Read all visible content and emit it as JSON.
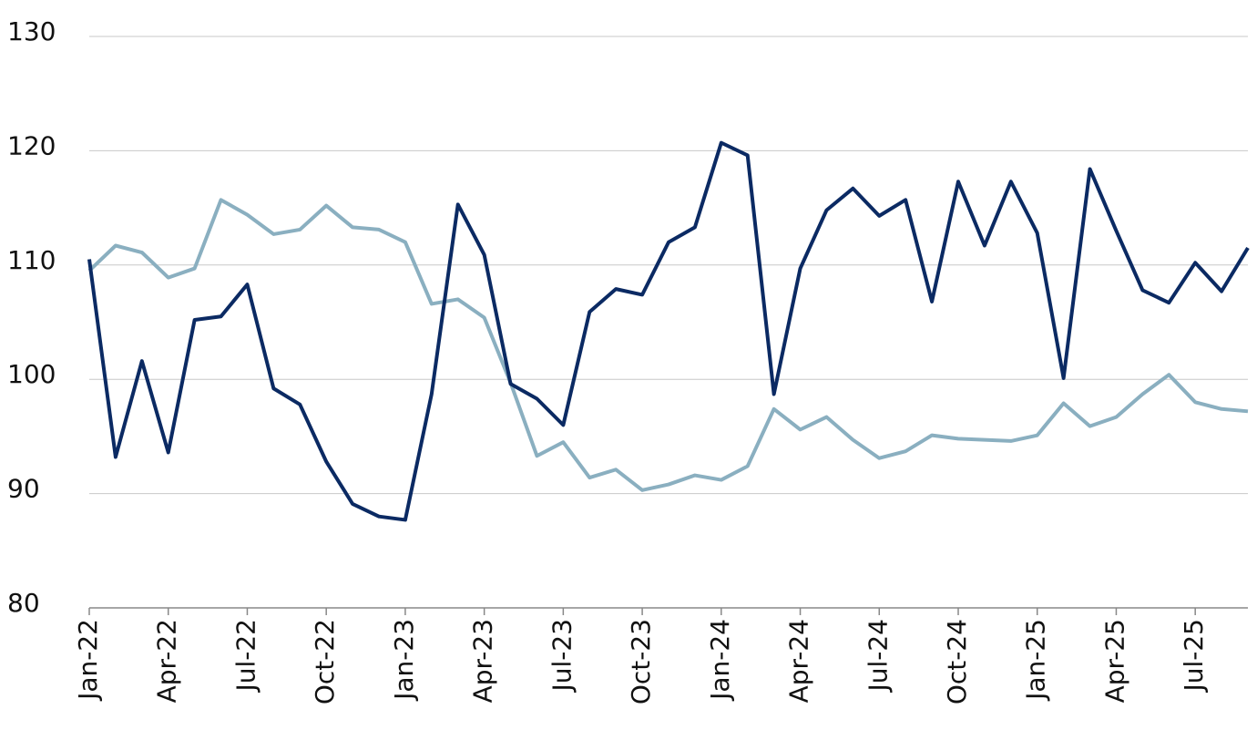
{
  "chart_data": {
    "type": "line",
    "categories": [
      "Jan-22",
      null,
      null,
      "Apr-22",
      null,
      null,
      "Jul-22",
      null,
      null,
      "Oct-22",
      null,
      null,
      "Jan-23",
      null,
      null,
      "Apr-23",
      null,
      null,
      "Jul-23",
      null,
      null,
      "Oct-23",
      null,
      null,
      "Jan-24",
      null,
      null,
      "Apr-24",
      null,
      null,
      "Jul-24",
      null,
      null,
      "Oct-24",
      null,
      null,
      "Jan-25",
      null,
      null,
      "Apr-25",
      null,
      null,
      "Jul-25",
      null,
      null
    ],
    "series": [
      {
        "color": "#0b2a63",
        "values": [
          110.5,
          93.2,
          101.6,
          93.6,
          105.2,
          105.5,
          108.3,
          99.2,
          97.8,
          92.8,
          89.1,
          88.0,
          87.7,
          98.7,
          115.3,
          110.9,
          99.6,
          98.3,
          96.0,
          105.9,
          107.9,
          107.4,
          112.0,
          113.3,
          120.7,
          119.6,
          98.7,
          109.7,
          114.8,
          116.7,
          114.3,
          115.7,
          106.8,
          117.3,
          111.7,
          117.3,
          112.8,
          100.1,
          118.4,
          113.0,
          107.8,
          106.7,
          110.2,
          107.7,
          111.5
        ]
      },
      {
        "color": "#8aafc0",
        "values": [
          109.5,
          111.7,
          111.1,
          108.9,
          109.7,
          115.7,
          114.4,
          112.7,
          113.1,
          115.2,
          113.3,
          113.1,
          112.0,
          106.6,
          107.0,
          105.4,
          99.7,
          93.3,
          94.5,
          91.4,
          92.1,
          90.3,
          90.8,
          91.6,
          91.2,
          92.4,
          97.4,
          95.6,
          96.7,
          94.7,
          93.1,
          93.7,
          95.1,
          94.8,
          94.7,
          94.6,
          95.1,
          97.9,
          95.9,
          96.7,
          98.7,
          100.4,
          98.0,
          97.4,
          97.2
        ]
      }
    ],
    "ylim": [
      80,
      130
    ],
    "yticks": [
      80,
      90,
      100,
      110,
      120,
      130
    ],
    "grid": true
  }
}
